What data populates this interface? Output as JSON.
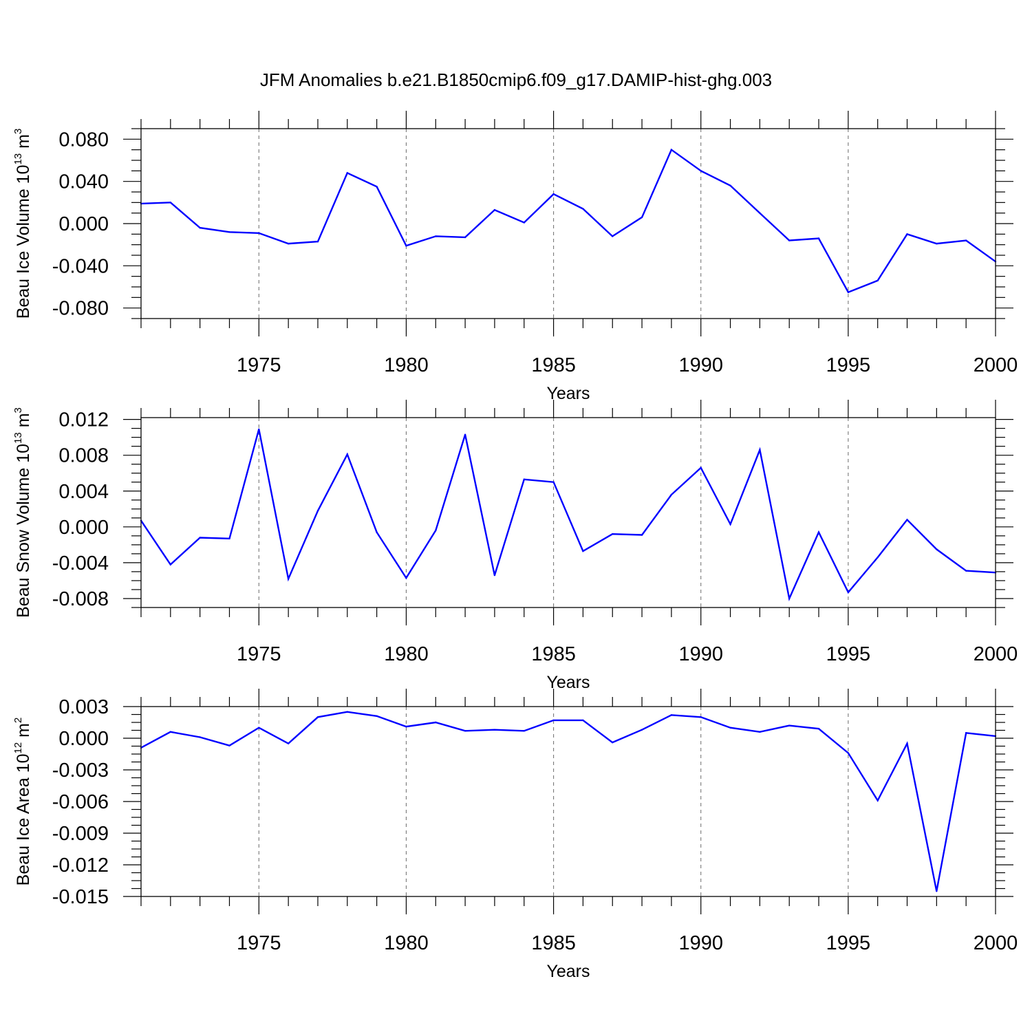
{
  "title": "JFM Anomalies b.e21.B1850cmip6.f09_g17.DAMIP-hist-ghg.003",
  "colors": {
    "line": "#0000ff",
    "grid": "#777777"
  },
  "chart_data": [
    {
      "type": "line",
      "xlabel": "Years",
      "ylabel": {
        "text": "Beau Ice Volume 10",
        "exp": "13",
        "unit": " m",
        "unit_exp": "3"
      },
      "xlim": [
        1971,
        2000
      ],
      "ylim": [
        -0.09,
        0.09
      ],
      "x_ticks": [
        1975,
        1980,
        1985,
        1990,
        1995,
        2000
      ],
      "y_ticks": [
        0.08,
        0.04,
        0.0,
        -0.04,
        -0.08
      ],
      "y_tick_labels": [
        "0.080",
        "0.040",
        "0.000",
        "-0.040",
        "-0.080"
      ],
      "grid": "vertical dashed at major x ticks",
      "x": [
        1971,
        1972,
        1973,
        1974,
        1975,
        1976,
        1977,
        1978,
        1979,
        1980,
        1981,
        1982,
        1983,
        1984,
        1985,
        1986,
        1987,
        1988,
        1989,
        1990,
        1991,
        1992,
        1993,
        1994,
        1995,
        1996,
        1997,
        1998,
        1999,
        2000
      ],
      "values": [
        0.019,
        0.02,
        -0.004,
        -0.008,
        -0.009,
        -0.019,
        -0.017,
        0.048,
        0.035,
        -0.021,
        -0.012,
        -0.013,
        0.013,
        0.001,
        0.028,
        0.014,
        -0.012,
        0.006,
        0.07,
        0.05,
        0.036,
        0.01,
        -0.016,
        -0.014,
        -0.065,
        -0.054,
        -0.01,
        -0.019,
        -0.016,
        -0.036
      ]
    },
    {
      "type": "line",
      "xlabel": "Years",
      "ylabel": {
        "text": "Beau Snow Volume 10",
        "exp": "13",
        "unit": " m",
        "unit_exp": "3"
      },
      "xlim": [
        1971,
        2000
      ],
      "ylim": [
        -0.009,
        0.0122
      ],
      "x_ticks": [
        1975,
        1980,
        1985,
        1990,
        1995,
        2000
      ],
      "y_ticks": [
        0.012,
        0.008,
        0.004,
        0.0,
        -0.004,
        -0.008
      ],
      "y_tick_labels": [
        "0.012",
        "0.008",
        "0.004",
        "0.000",
        "-0.004",
        "-0.008"
      ],
      "grid": "vertical dashed at major x ticks",
      "x": [
        1971,
        1972,
        1973,
        1974,
        1975,
        1976,
        1977,
        1978,
        1979,
        1980,
        1981,
        1982,
        1983,
        1984,
        1985,
        1986,
        1987,
        1988,
        1989,
        1990,
        1991,
        1992,
        1993,
        1994,
        1995,
        1996,
        1997,
        1998,
        1999,
        2000
      ],
      "values": [
        0.0007,
        -0.0042,
        -0.0012,
        -0.0013,
        0.0109,
        -0.0058,
        0.0018,
        0.0081,
        -0.0006,
        -0.0057,
        -0.0004,
        0.0103,
        -0.0054,
        0.0053,
        0.005,
        -0.0027,
        -0.0008,
        -0.0009,
        0.0036,
        0.0066,
        0.0003,
        0.0086,
        -0.008,
        -0.0006,
        -0.0073,
        -0.0034,
        0.0008,
        -0.0025,
        -0.0049,
        -0.0051
      ]
    },
    {
      "type": "line",
      "xlabel": "Years",
      "ylabel": {
        "text": "Beau Ice Area 10",
        "exp": "12",
        "unit": " m",
        "unit_exp": "2"
      },
      "xlim": [
        1971,
        2000
      ],
      "ylim": [
        -0.015,
        0.003
      ],
      "x_ticks": [
        1975,
        1980,
        1985,
        1990,
        1995,
        2000
      ],
      "y_ticks": [
        0.003,
        0.0,
        -0.003,
        -0.006,
        -0.009,
        -0.012,
        -0.015
      ],
      "y_tick_labels": [
        "0.003",
        "0.000",
        "-0.003",
        "-0.006",
        "-0.009",
        "-0.012",
        "-0.015"
      ],
      "grid": "vertical dashed at major x ticks",
      "x": [
        1971,
        1972,
        1973,
        1974,
        1975,
        1976,
        1977,
        1978,
        1979,
        1980,
        1981,
        1982,
        1983,
        1984,
        1985,
        1986,
        1987,
        1988,
        1989,
        1990,
        1991,
        1992,
        1993,
        1994,
        1995,
        1996,
        1997,
        1998,
        1999,
        2000
      ],
      "values": [
        -0.0009,
        0.0006,
        0.0001,
        -0.0007,
        0.001,
        -0.0005,
        0.002,
        0.0025,
        0.0021,
        0.0011,
        0.0015,
        0.0007,
        0.0008,
        0.0007,
        0.0017,
        0.0017,
        -0.0004,
        0.0008,
        0.0022,
        0.002,
        0.001,
        0.0006,
        0.0012,
        0.0009,
        -0.0014,
        -0.0059,
        -0.0005,
        -0.0145,
        0.0005,
        0.0002
      ]
    }
  ]
}
